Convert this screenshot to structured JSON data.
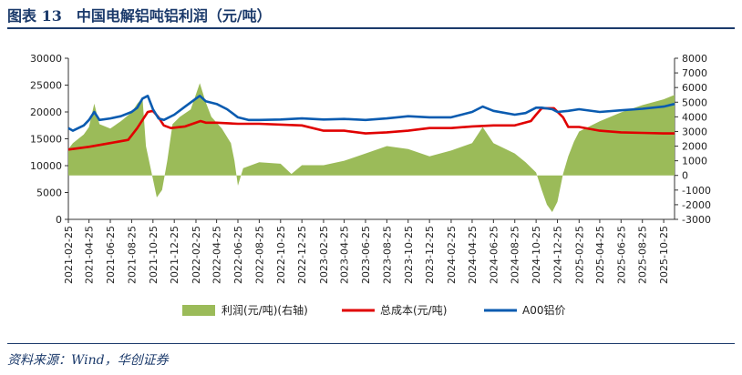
{
  "figure": {
    "title": "图表 13　中国电解铝吨铝利润（元/吨）",
    "source": "资料来源：Wind，华创证券"
  },
  "chart_data": {
    "type": "area+line",
    "title": "中国电解铝吨铝利润（元/吨）",
    "y_left": {
      "min": 0,
      "max": 30000,
      "ticks": [
        "0",
        "5000",
        "10000",
        "15000",
        "20000",
        "25000",
        "30000"
      ]
    },
    "y_right": {
      "min": -3000,
      "max": 8000,
      "ticks": [
        "-3000",
        "-2000",
        "-1000",
        "0",
        "1000",
        "2000",
        "3000",
        "4000",
        "5000",
        "6000",
        "7000",
        "8000"
      ]
    },
    "x_ticks": [
      "2021-02-25",
      "2021-04-25",
      "2021-06-25",
      "2021-08-25",
      "2021-10-25",
      "2021-12-25",
      "2022-02-25",
      "2022-04-25",
      "2022-06-25",
      "2022-08-25",
      "2022-10-25",
      "2022-12-25",
      "2023-02-25",
      "2023-04-25",
      "2023-06-25",
      "2023-08-25",
      "2023-10-25",
      "2023-12-25",
      "2024-02-25",
      "2024-04-25",
      "2024-06-25",
      "2024-08-25",
      "2024-10-25",
      "2024-12-25",
      "2025-02-25",
      "2025-04-25",
      "2025-06-25",
      "2025-08-25",
      "2025-10-25"
    ],
    "x_range": [
      "2021-02-25",
      "2025-11-25"
    ],
    "colors": {
      "profit": "#9bbb59",
      "cost": "#e00000",
      "price": "#0a5bb0"
    },
    "legend": {
      "placement": "bottom",
      "items": [
        "利润(元/吨)(右轴)",
        "总成本(元/吨)",
        "A00铝价"
      ]
    },
    "series": [
      {
        "name": "利润(元/吨)(右轴)",
        "axis": "right",
        "kind": "area",
        "points": [
          [
            "2021-02-25",
            1800
          ],
          [
            "2021-03-10",
            2200
          ],
          [
            "2021-04-10",
            2800
          ],
          [
            "2021-04-25",
            3300
          ],
          [
            "2021-05-10",
            4900
          ],
          [
            "2021-05-25",
            3500
          ],
          [
            "2021-06-25",
            3200
          ],
          [
            "2021-07-25",
            3700
          ],
          [
            "2021-08-25",
            4300
          ],
          [
            "2021-09-10",
            4900
          ],
          [
            "2021-09-25",
            5300
          ],
          [
            "2021-10-05",
            2000
          ],
          [
            "2021-10-20",
            300
          ],
          [
            "2021-11-05",
            -1500
          ],
          [
            "2021-11-20",
            -1000
          ],
          [
            "2021-12-05",
            1000
          ],
          [
            "2021-12-20",
            3500
          ],
          [
            "2022-01-10",
            4000
          ],
          [
            "2022-02-10",
            4500
          ],
          [
            "2022-03-08",
            6300
          ],
          [
            "2022-03-25",
            5000
          ],
          [
            "2022-04-10",
            4000
          ],
          [
            "2022-05-10",
            3200
          ],
          [
            "2022-06-05",
            2200
          ],
          [
            "2022-06-15",
            1000
          ],
          [
            "2022-06-25",
            -700
          ],
          [
            "2022-07-10",
            500
          ],
          [
            "2022-08-25",
            900
          ],
          [
            "2022-10-25",
            800
          ],
          [
            "2022-11-25",
            100
          ],
          [
            "2022-12-25",
            700
          ],
          [
            "2023-02-25",
            700
          ],
          [
            "2023-04-25",
            1000
          ],
          [
            "2023-06-25",
            1500
          ],
          [
            "2023-08-25",
            2000
          ],
          [
            "2023-10-25",
            1800
          ],
          [
            "2023-12-25",
            1300
          ],
          [
            "2024-02-25",
            1700
          ],
          [
            "2024-04-25",
            2200
          ],
          [
            "2024-05-25",
            3300
          ],
          [
            "2024-06-25",
            2200
          ],
          [
            "2024-08-25",
            1500
          ],
          [
            "2024-09-25",
            900
          ],
          [
            "2024-10-25",
            200
          ],
          [
            "2024-11-10",
            -1000
          ],
          [
            "2024-11-25",
            -2000
          ],
          [
            "2024-12-10",
            -2500
          ],
          [
            "2024-12-25",
            -1800
          ],
          [
            "2025-01-10",
            100
          ],
          [
            "2025-01-25",
            1300
          ],
          [
            "2025-02-10",
            2300
          ],
          [
            "2025-02-25",
            3000
          ],
          [
            "2025-04-25",
            3700
          ],
          [
            "2025-06-25",
            4300
          ],
          [
            "2025-08-25",
            4800
          ],
          [
            "2025-10-25",
            5200
          ],
          [
            "2025-11-25",
            5500
          ]
        ]
      },
      {
        "name": "总成本(元/吨)",
        "axis": "left",
        "kind": "line",
        "points": [
          [
            "2021-02-25",
            13000
          ],
          [
            "2021-04-25",
            13500
          ],
          [
            "2021-06-25",
            14200
          ],
          [
            "2021-08-15",
            14800
          ],
          [
            "2021-09-10",
            17000
          ],
          [
            "2021-10-10",
            20000
          ],
          [
            "2021-10-25",
            20200
          ],
          [
            "2021-11-10",
            19000
          ],
          [
            "2021-11-25",
            17500
          ],
          [
            "2021-12-15",
            17000
          ],
          [
            "2022-01-25",
            17300
          ],
          [
            "2022-03-10",
            18300
          ],
          [
            "2022-03-25",
            18000
          ],
          [
            "2022-04-25",
            18000
          ],
          [
            "2022-06-25",
            17800
          ],
          [
            "2022-08-25",
            17800
          ],
          [
            "2022-12-25",
            17500
          ],
          [
            "2023-02-25",
            16500
          ],
          [
            "2023-04-25",
            16500
          ],
          [
            "2023-06-25",
            16000
          ],
          [
            "2023-08-25",
            16200
          ],
          [
            "2023-10-25",
            16500
          ],
          [
            "2023-12-25",
            17000
          ],
          [
            "2024-02-25",
            17000
          ],
          [
            "2024-04-25",
            17300
          ],
          [
            "2024-06-25",
            17500
          ],
          [
            "2024-08-25",
            17500
          ],
          [
            "2024-10-10",
            18300
          ],
          [
            "2024-10-25",
            19500
          ],
          [
            "2024-11-10",
            20700
          ],
          [
            "2024-12-15",
            20700
          ],
          [
            "2025-01-10",
            19000
          ],
          [
            "2025-01-25",
            17200
          ],
          [
            "2025-02-25",
            17200
          ],
          [
            "2025-04-25",
            16500
          ],
          [
            "2025-06-25",
            16200
          ],
          [
            "2025-08-25",
            16100
          ],
          [
            "2025-10-25",
            16000
          ],
          [
            "2025-11-25",
            16000
          ]
        ]
      },
      {
        "name": "A00铝价",
        "axis": "left",
        "kind": "line",
        "points": [
          [
            "2021-02-25",
            17000
          ],
          [
            "2021-03-10",
            16500
          ],
          [
            "2021-04-10",
            17500
          ],
          [
            "2021-04-25",
            18500
          ],
          [
            "2021-05-10",
            20000
          ],
          [
            "2021-05-25",
            18500
          ],
          [
            "2021-06-25",
            18800
          ],
          [
            "2021-07-25",
            19200
          ],
          [
            "2021-08-25",
            20000
          ],
          [
            "2021-09-10",
            20800
          ],
          [
            "2021-09-25",
            22500
          ],
          [
            "2021-10-10",
            23000
          ],
          [
            "2021-10-25",
            20500
          ],
          [
            "2021-11-10",
            18800
          ],
          [
            "2021-11-25",
            18500
          ],
          [
            "2021-12-25",
            19500
          ],
          [
            "2022-01-25",
            21000
          ],
          [
            "2022-02-25",
            22500
          ],
          [
            "2022-03-08",
            23000
          ],
          [
            "2022-03-25",
            22000
          ],
          [
            "2022-04-25",
            21500
          ],
          [
            "2022-05-25",
            20500
          ],
          [
            "2022-06-25",
            19000
          ],
          [
            "2022-07-25",
            18500
          ],
          [
            "2022-08-25",
            18500
          ],
          [
            "2022-10-25",
            18600
          ],
          [
            "2022-12-25",
            18800
          ],
          [
            "2023-02-25",
            18600
          ],
          [
            "2023-04-25",
            18700
          ],
          [
            "2023-06-25",
            18500
          ],
          [
            "2023-08-25",
            18800
          ],
          [
            "2023-10-25",
            19200
          ],
          [
            "2023-12-25",
            19000
          ],
          [
            "2024-02-25",
            19000
          ],
          [
            "2024-04-25",
            20000
          ],
          [
            "2024-05-25",
            21000
          ],
          [
            "2024-06-25",
            20200
          ],
          [
            "2024-08-25",
            19500
          ],
          [
            "2024-09-25",
            19800
          ],
          [
            "2024-10-25",
            20800
          ],
          [
            "2024-11-10",
            20800
          ],
          [
            "2024-12-10",
            20500
          ],
          [
            "2024-12-25",
            20000
          ],
          [
            "2025-01-25",
            20200
          ],
          [
            "2025-02-25",
            20500
          ],
          [
            "2025-04-25",
            20000
          ],
          [
            "2025-06-25",
            20300
          ],
          [
            "2025-08-25",
            20600
          ],
          [
            "2025-10-25",
            21000
          ],
          [
            "2025-11-25",
            21500
          ]
        ]
      }
    ]
  }
}
